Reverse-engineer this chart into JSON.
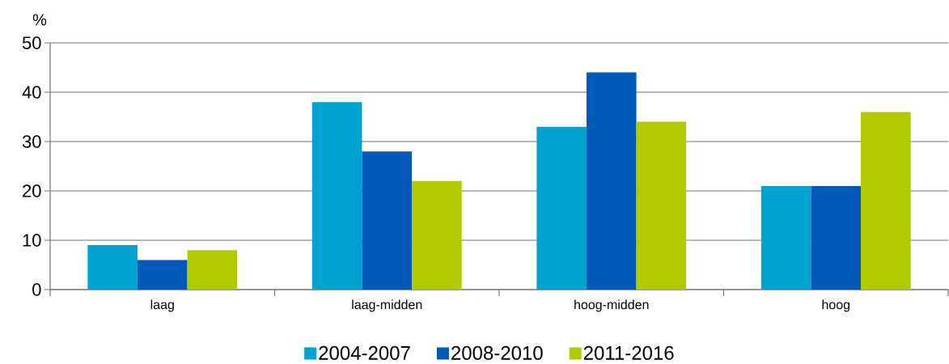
{
  "chart_data": {
    "type": "bar",
    "ylabel": "%",
    "categories": [
      "laag",
      "laag-midden",
      "hoog-midden",
      "hoog"
    ],
    "series": [
      {
        "name": "2004-2007",
        "color": "#00a2cf",
        "values": [
          9,
          38,
          33,
          21
        ]
      },
      {
        "name": "2008-2010",
        "color": "#0058b7",
        "values": [
          6,
          28,
          44,
          21
        ]
      },
      {
        "name": "2011-2016",
        "color": "#b0cb00",
        "values": [
          8,
          22,
          34,
          36
        ]
      }
    ],
    "ylim": [
      0,
      50
    ],
    "yticks": [
      0,
      10,
      20,
      30,
      40,
      50
    ],
    "grid": "y",
    "legend": "bottom"
  }
}
